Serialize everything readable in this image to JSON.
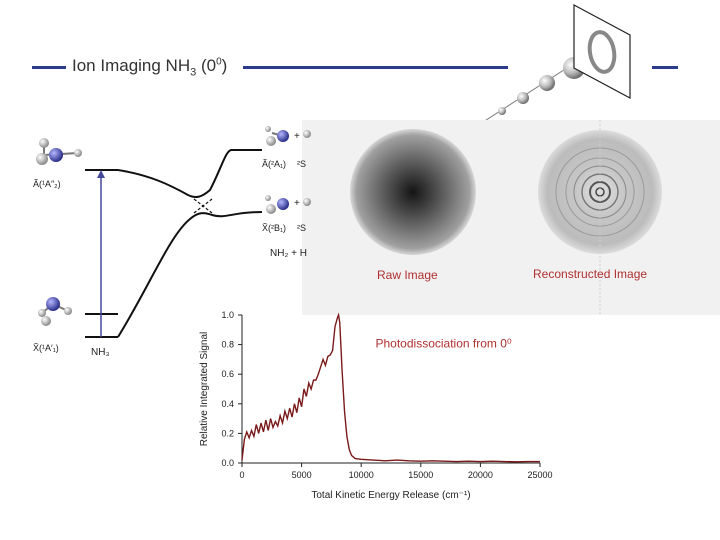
{
  "title": {
    "main": "Ion Imaging NH",
    "sub3": "3",
    "paren": " (0",
    "sup0": "0",
    "close": ")"
  },
  "diagram": {
    "state_A_left": "Ã(¹A″₂)",
    "state_X_left": "X̃(¹A′₁)",
    "nh3_label": "NH₃",
    "state_A_right": "Ã(²A₁)",
    "state_X_right": "X̃(²B₁)",
    "s2_top": "²S",
    "s2_bottom": "²S",
    "plus_top": "+",
    "plus_bottom": "+",
    "products": "NH₂ + H"
  },
  "images": {
    "raw_caption": "Raw Image",
    "reconstructed_caption": "Reconstructed Image"
  },
  "chart_data": {
    "type": "line",
    "title": "",
    "annotation": "Photodissociation from 0⁰",
    "xlabel": "Total Kinetic Energy Release (cm⁻¹)",
    "ylabel": "Relative Integrated Signal",
    "xlim": [
      0,
      25000
    ],
    "ylim": [
      0,
      1.0
    ],
    "xticks": [
      0,
      5000,
      10000,
      15000,
      20000,
      25000
    ],
    "yticks": [
      0.0,
      0.2,
      0.4,
      0.6,
      0.8,
      1.0
    ],
    "ytick_labels": [
      "0.0",
      "0.2",
      "0.4",
      "0.6",
      "0.8",
      "1.0"
    ],
    "grid": false,
    "series_color": "#7a1a1a",
    "series": [
      {
        "name": "",
        "x": [
          0,
          200,
          400,
          600,
          800,
          1000,
          1200,
          1400,
          1600,
          1800,
          2000,
          2200,
          2400,
          2600,
          2800,
          3000,
          3200,
          3400,
          3600,
          3800,
          4000,
          4200,
          4400,
          4600,
          4800,
          5000,
          5200,
          5400,
          5600,
          5800,
          6000,
          6200,
          6400,
          6600,
          6800,
          7000,
          7200,
          7400,
          7600,
          7800,
          8000,
          8100,
          8200,
          8400,
          8600,
          8800,
          9000,
          9200,
          9500,
          10000,
          11000,
          12000,
          13000,
          14000,
          15000,
          16000,
          17000,
          18000,
          19000,
          20000,
          21000,
          22000,
          23000,
          24000,
          25000
        ],
        "y": [
          0.02,
          0.16,
          0.21,
          0.17,
          0.22,
          0.18,
          0.26,
          0.2,
          0.27,
          0.21,
          0.29,
          0.22,
          0.3,
          0.24,
          0.28,
          0.25,
          0.32,
          0.27,
          0.35,
          0.3,
          0.37,
          0.31,
          0.4,
          0.34,
          0.44,
          0.38,
          0.5,
          0.45,
          0.54,
          0.5,
          0.56,
          0.56,
          0.6,
          0.65,
          0.7,
          0.66,
          0.72,
          0.73,
          0.76,
          0.92,
          0.98,
          1.0,
          0.95,
          0.62,
          0.35,
          0.18,
          0.09,
          0.05,
          0.03,
          0.025,
          0.02,
          0.015,
          0.02,
          0.015,
          0.012,
          0.015,
          0.012,
          0.01,
          0.012,
          0.01,
          0.012,
          0.01,
          0.008,
          0.01,
          0.01
        ]
      }
    ]
  }
}
